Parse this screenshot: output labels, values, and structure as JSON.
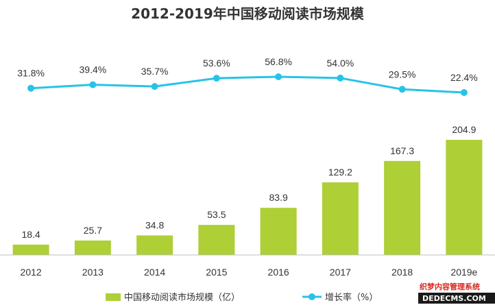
{
  "title": "2012-2019年中国移动阅读市场规模",
  "colors": {
    "bar": "#aecf35",
    "line": "#27c3e7",
    "text": "#333333",
    "axis": "#bfbfbf",
    "watermark_red": "#d9261c",
    "watermark_bg": "#1a1a1a"
  },
  "chart_data": {
    "type": "bar",
    "categories": [
      "2012",
      "2013",
      "2014",
      "2015",
      "2016",
      "2017",
      "2018",
      "2019e"
    ],
    "series": [
      {
        "name": "中国移动阅读市场规模（亿）",
        "type": "bar",
        "values": [
          18.4,
          25.7,
          34.8,
          53.5,
          83.9,
          129.2,
          167.3,
          204.9
        ],
        "labels": [
          "18.4",
          "25.7",
          "34.8",
          "53.5",
          "83.9",
          "129.2",
          "167.3",
          "204.9"
        ]
      },
      {
        "name": "增长率（%）",
        "type": "line",
        "values": [
          31.8,
          39.4,
          35.7,
          53.6,
          56.8,
          54.0,
          29.5,
          22.4
        ],
        "labels": [
          "31.8%",
          "39.4%",
          "35.7%",
          "53.6%",
          "56.8%",
          "54.0%",
          "29.5%",
          "22.4%"
        ]
      }
    ],
    "bar_ylim": [
      0,
      230
    ],
    "line_ylim": [
      0,
      60
    ],
    "legend_position": "bottom",
    "grid": false
  },
  "legend": {
    "bar_label": "中国移动阅读市场规模（亿）",
    "line_label": "增长率（%）"
  },
  "watermark": {
    "line1": "织梦内容管理系统",
    "line2": "DEDECMS.COM"
  }
}
